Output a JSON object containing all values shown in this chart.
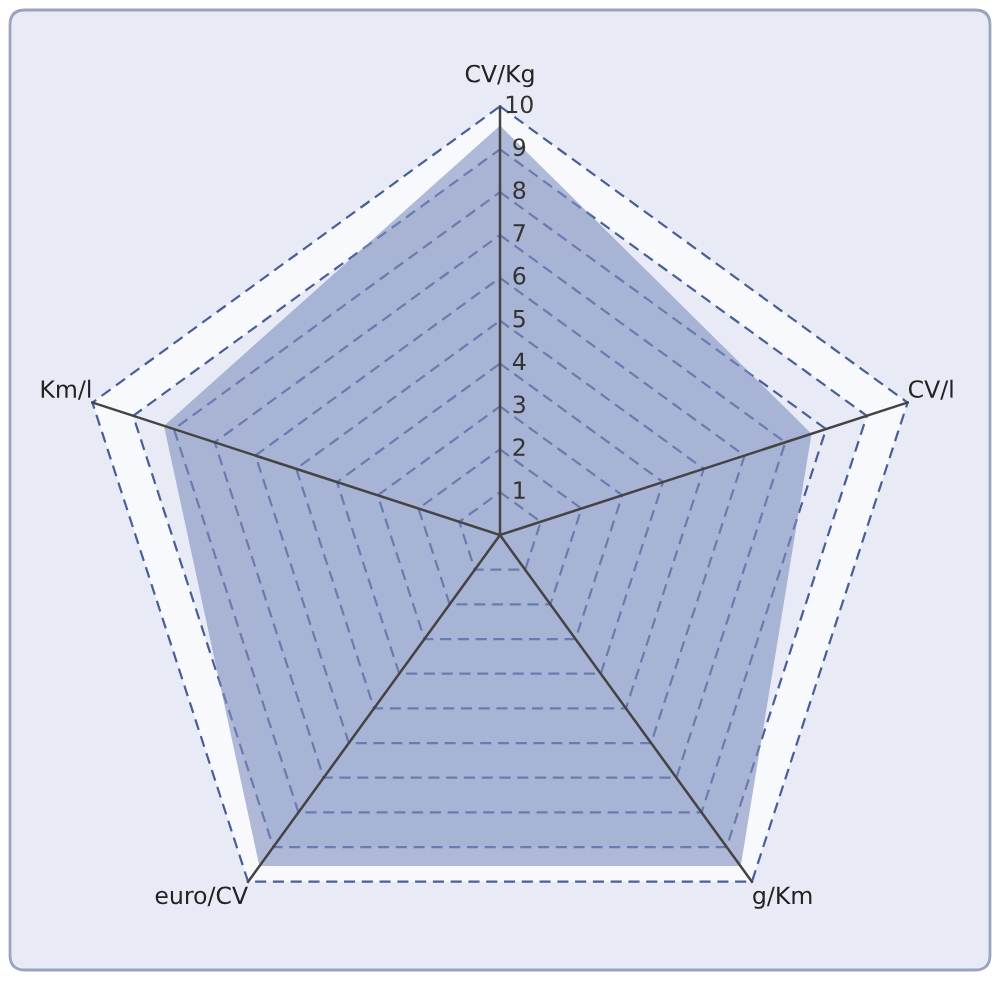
{
  "chart_data": {
    "type": "radar",
    "categories": [
      "CV/Kg",
      "CV/l",
      "g/Km",
      "euro/CV",
      "Km/l"
    ],
    "series": [
      {
        "color": "#7f90c0",
        "values": [
          9.5,
          7.6,
          9.5,
          9.5,
          8.2
        ]
      }
    ],
    "ylim": [
      0,
      10
    ],
    "yticks": [
      1,
      2,
      3,
      4,
      5,
      6,
      7,
      8,
      9,
      10
    ],
    "grid": true
  }
}
